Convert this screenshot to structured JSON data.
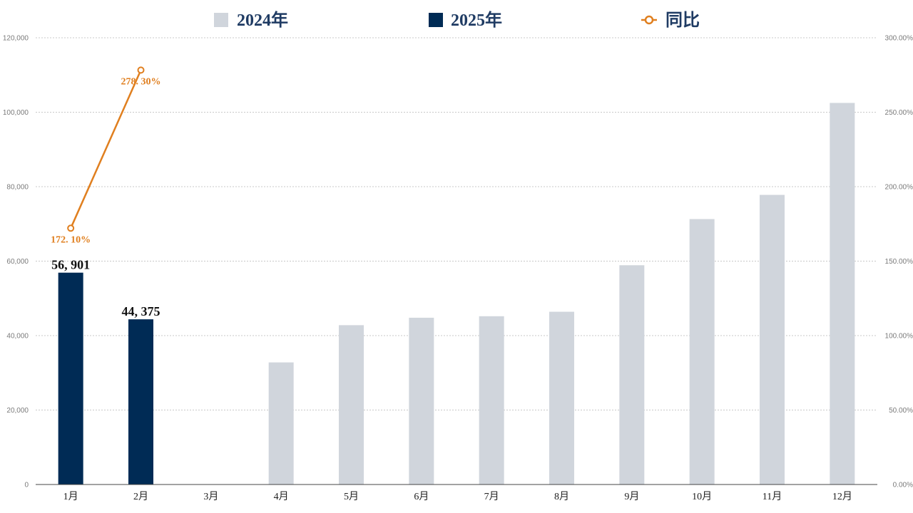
{
  "chart_data": {
    "type": "bar",
    "categories": [
      "1月",
      "2月",
      "3月",
      "4月",
      "5月",
      "6月",
      "7月",
      "8月",
      "9月",
      "10月",
      "11月",
      "12月"
    ],
    "series": [
      {
        "name": "2024年",
        "type": "bar",
        "axis": "left",
        "values": [
          null,
          null,
          null,
          32800,
          42800,
          44800,
          45200,
          46400,
          58900,
          71300,
          77800,
          102500
        ]
      },
      {
        "name": "2025年",
        "type": "bar",
        "axis": "left",
        "values": [
          56901,
          44375,
          null,
          null,
          null,
          null,
          null,
          null,
          null,
          null,
          null,
          null
        ],
        "labels": [
          "56, 901",
          "44, 375",
          "",
          "",
          "",
          "",
          "",
          "",
          "",
          "",
          "",
          ""
        ]
      },
      {
        "name": "同比",
        "type": "line",
        "axis": "right",
        "values": [
          172.1,
          278.3,
          null,
          null,
          null,
          null,
          null,
          null,
          null,
          null,
          null,
          null
        ],
        "labels": [
          "172. 10%",
          "278. 30%",
          "",
          "",
          "",
          "",
          "",
          "",
          "",
          "",
          "",
          ""
        ]
      }
    ],
    "ylim": [
      0,
      120000
    ],
    "y2lim": [
      0,
      300
    ],
    "y_ticks": [
      "0",
      "20,000",
      "40,000",
      "60,000",
      "80,000",
      "100,000",
      "120,000"
    ],
    "y2_ticks": [
      "0.00%",
      "50.00%",
      "100.00%",
      "150.00%",
      "200.00%",
      "250.00%",
      "300.00%"
    ],
    "grid": true,
    "legend_position": "top-center",
    "colors": {
      "bar_2024": "#d0d5dc",
      "bar_2025": "#002b55",
      "line": "#e07f1f",
      "grid": "#c8c8c8",
      "axis": "#444444"
    }
  }
}
